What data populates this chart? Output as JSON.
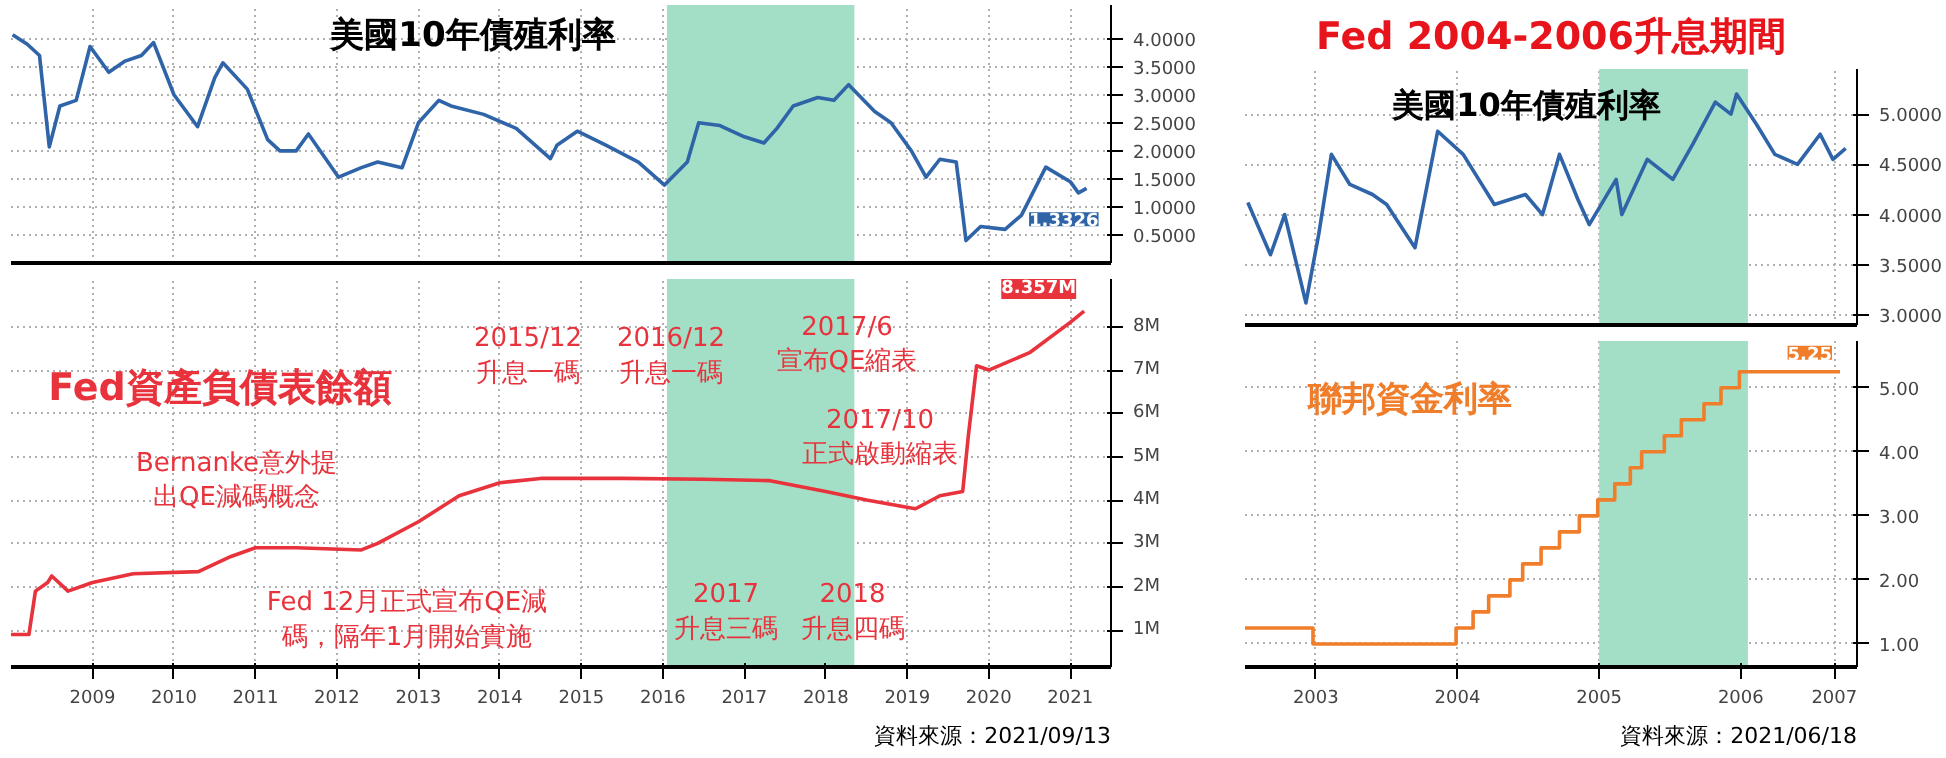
{
  "chart_data": [
    {
      "type": "line",
      "title": "美國10年債殖利率",
      "x": [
        2008.52,
        2008.7,
        2008.85,
        2008.97,
        2009.1,
        2009.3,
        2009.47,
        2009.7,
        2009.9,
        2010.1,
        2010.25,
        2010.5,
        2010.79,
        2011.0,
        2011.1,
        2011.4,
        2011.65,
        2011.8,
        2012.0,
        2012.15,
        2012.52,
        2012.8,
        2013.0,
        2013.3,
        2013.5,
        2013.75,
        2013.9,
        2014.3,
        2014.7,
        2015.12,
        2015.2,
        2015.45,
        2015.8,
        2016.2,
        2016.52,
        2016.8,
        2016.94,
        2017.2,
        2017.5,
        2017.74,
        2017.9,
        2018.1,
        2018.4,
        2018.6,
        2018.78,
        2019.1,
        2019.3,
        2019.55,
        2019.73,
        2019.9,
        2020.1,
        2020.17,
        2020.22,
        2020.4,
        2020.7,
        2020.9,
        2021.2,
        2021.5,
        2021.6,
        2021.7
      ],
      "series": [
        {
          "color": "#2f64a8",
          "values": [
            4.07,
            3.9,
            3.7,
            2.07,
            2.8,
            2.9,
            3.86,
            3.4,
            3.6,
            3.7,
            3.93,
            3.0,
            2.43,
            3.3,
            3.57,
            3.1,
            2.2,
            2.0,
            2.0,
            2.3,
            1.53,
            1.7,
            1.8,
            1.7,
            2.5,
            2.9,
            2.8,
            2.65,
            2.4,
            1.86,
            2.1,
            2.35,
            2.1,
            1.8,
            1.39,
            1.8,
            2.5,
            2.45,
            2.25,
            2.14,
            2.4,
            2.8,
            2.95,
            2.9,
            3.18,
            2.7,
            2.5,
            2.0,
            1.53,
            1.85,
            1.8,
            1.0,
            0.4,
            0.65,
            0.6,
            0.85,
            1.71,
            1.45,
            1.25,
            1.33
          ]
        }
      ],
      "xlim": [
        2008.5,
        2022.0
      ],
      "ylim": [
        0,
        4.6
      ],
      "xticks": [
        {
          "value": 2009.5,
          "label": "2009"
        },
        {
          "value": 2010.5,
          "label": "2010"
        },
        {
          "value": 2011.5,
          "label": "2011"
        },
        {
          "value": 2012.5,
          "label": "2012"
        },
        {
          "value": 2013.5,
          "label": "2013"
        },
        {
          "value": 2014.5,
          "label": "2014"
        },
        {
          "value": 2015.5,
          "label": "2015"
        },
        {
          "value": 2016.5,
          "label": "2016"
        },
        {
          "value": 2017.5,
          "label": "2017"
        },
        {
          "value": 2018.5,
          "label": "2018"
        },
        {
          "value": 2019.5,
          "label": "2019"
        },
        {
          "value": 2020.5,
          "label": "2020"
        },
        {
          "value": 2021.5,
          "label": "2021"
        }
      ],
      "yticks": [
        {
          "value": 0.5,
          "label": "0.5000"
        },
        {
          "value": 1,
          "label": "1.0000"
        },
        {
          "value": 1.5,
          "label": "1.5000"
        },
        {
          "value": 2,
          "label": "2.0000"
        },
        {
          "value": 2.5,
          "label": "2.5000"
        },
        {
          "value": 3,
          "label": "3.0000"
        },
        {
          "value": 3.5,
          "label": "3.5000"
        },
        {
          "value": 4,
          "label": "4.0000"
        }
      ],
      "bands": [
        {
          "axis": "x",
          "from": 2016.55,
          "to": 2018.85,
          "color": "#a3dfc6"
        }
      ],
      "annotations": [
        {
          "text": "1.3326",
          "x": 2021.7,
          "y": 1.3326
        }
      ],
      "grid": true,
      "tick_labels": "y"
    },
    {
      "type": "line",
      "title": "Fed資產負債表餘額",
      "x": [
        2008.5,
        2008.72,
        2008.8,
        2008.95,
        2009.0,
        2009.2,
        2009.5,
        2010.0,
        2010.8,
        2011.2,
        2011.5,
        2012.0,
        2012.8,
        2013.0,
        2013.5,
        2014.0,
        2014.5,
        2015.0,
        2016.0,
        2017.0,
        2017.8,
        2018.5,
        2019.0,
        2019.6,
        2019.9,
        2020.18,
        2020.25,
        2020.35,
        2020.5,
        2021.0,
        2021.5,
        2021.67
      ],
      "series": [
        {
          "color": "#e8323c",
          "values": [
            0.9,
            0.9,
            1.9,
            2.1,
            2.25,
            1.9,
            2.1,
            2.3,
            2.35,
            2.7,
            2.9,
            2.9,
            2.85,
            3.0,
            3.5,
            4.1,
            4.4,
            4.5,
            4.5,
            4.48,
            4.45,
            4.2,
            4.0,
            3.8,
            4.1,
            4.2,
            5.5,
            7.1,
            7.0,
            7.4,
            8.1,
            8.36
          ]
        }
      ],
      "xlim": [
        2008.5,
        2022.0
      ],
      "ylim": [
        0.15,
        9.1
      ],
      "xticks": [
        {
          "value": 2009.5,
          "label": "2009"
        },
        {
          "value": 2010.5,
          "label": "2010"
        },
        {
          "value": 2011.5,
          "label": "2011"
        },
        {
          "value": 2012.5,
          "label": "2012"
        },
        {
          "value": 2013.5,
          "label": "2013"
        },
        {
          "value": 2014.5,
          "label": "2014"
        },
        {
          "value": 2015.5,
          "label": "2015"
        },
        {
          "value": 2016.5,
          "label": "2016"
        },
        {
          "value": 2017.5,
          "label": "2017"
        },
        {
          "value": 2018.5,
          "label": "2018"
        },
        {
          "value": 2019.5,
          "label": "2019"
        },
        {
          "value": 2020.5,
          "label": "2020"
        },
        {
          "value": 2021.5,
          "label": "2021"
        }
      ],
      "yticks": [
        {
          "value": 1,
          "label": "1M"
        },
        {
          "value": 2,
          "label": "2M"
        },
        {
          "value": 3,
          "label": "3M"
        },
        {
          "value": 4,
          "label": "4M"
        },
        {
          "value": 5,
          "label": "5M"
        },
        {
          "value": 6,
          "label": "6M"
        },
        {
          "value": 7,
          "label": "7M"
        },
        {
          "value": 8,
          "label": "8M"
        }
      ],
      "bands": [
        {
          "axis": "x",
          "from": 2016.55,
          "to": 2018.85,
          "color": "#a3dfc6"
        }
      ],
      "annotations": [
        {
          "text": "8.357M",
          "x": 2021.67,
          "y": 8.36
        },
        "Bernanke意外提出QE減碼概念",
        "Fed 12月正式宣布QE減碼，隔年1月開始實施",
        "2015/12\n升息一碼",
        "2016/12\n升息一碼",
        "2017/6\n宣布QE縮表",
        "2017/10\n正式啟動縮表",
        "2017\n升息三碼",
        "2018\n升息四碼",
        "資料來源：2021/09/13"
      ],
      "grid": true
    },
    {
      "type": "line",
      "title": "Fed 2004-2006升息期間",
      "subtitle": "美國10年債殖利率",
      "x": [
        2003.02,
        2003.18,
        2003.28,
        2003.43,
        2003.52,
        2003.61,
        2003.74,
        2003.9,
        2004.0,
        2004.2,
        2004.36,
        2004.54,
        2004.76,
        2004.98,
        2005.1,
        2005.22,
        2005.35,
        2005.43,
        2005.62,
        2005.66,
        2005.84,
        2006.02,
        2006.16,
        2006.32,
        2006.43,
        2006.47,
        2006.61,
        2006.74,
        2006.9,
        2007.06,
        2007.15,
        2007.24
      ],
      "series": [
        {
          "color": "#2f64a8",
          "values": [
            4.12,
            3.6,
            4.0,
            3.12,
            3.8,
            4.6,
            4.3,
            4.2,
            4.1,
            3.67,
            4.83,
            4.6,
            4.1,
            4.2,
            4.0,
            4.6,
            4.15,
            3.9,
            4.35,
            4.0,
            4.55,
            4.35,
            4.7,
            5.12,
            5.0,
            5.2,
            4.9,
            4.6,
            4.5,
            4.8,
            4.55,
            4.66
          ]
        }
      ],
      "xlim": [
        2003.0,
        2007.32
      ],
      "ylim": [
        2.9,
        5.45
      ],
      "xticks": [
        {
          "value": 2003.5,
          "label": "2003"
        },
        {
          "value": 2004.5,
          "label": "2004"
        },
        {
          "value": 2005.5,
          "label": "2005"
        },
        {
          "value": 2006.5,
          "label": "2006"
        },
        {
          "value": 2007.16,
          "label": "2007"
        }
      ],
      "yticks": [
        {
          "value": 3,
          "label": "3.0000"
        },
        {
          "value": 3.5,
          "label": "3.5000"
        },
        {
          "value": 4,
          "label": "4.0000"
        },
        {
          "value": 4.5,
          "label": "4.5000"
        },
        {
          "value": 5,
          "label": "5.0000"
        }
      ],
      "bands": [
        {
          "axis": "x",
          "from": 2005.5,
          "to": 2006.55,
          "color": "#a3dfc6"
        }
      ],
      "grid": true,
      "tick_labels": "y"
    },
    {
      "type": "step",
      "title": "聯邦資金利率",
      "x": [
        2003.0,
        2003.48,
        2004.49,
        2004.61,
        2004.72,
        2004.87,
        2004.96,
        2005.09,
        2005.22,
        2005.36,
        2005.49,
        2005.61,
        2005.72,
        2005.8,
        2005.96,
        2006.08,
        2006.24,
        2006.36,
        2006.49,
        2007.2
      ],
      "series": [
        {
          "color": "#f07d2a",
          "values": [
            1.25,
            1.0,
            1.25,
            1.5,
            1.75,
            2.0,
            2.25,
            2.5,
            2.75,
            3.0,
            3.25,
            3.5,
            3.75,
            4.0,
            4.25,
            4.5,
            4.75,
            5.0,
            5.25,
            5.25
          ]
        }
      ],
      "xlim": [
        2003.0,
        2007.32
      ],
      "ylim": [
        0.64,
        5.73
      ],
      "xticks": [
        {
          "value": 2003.5,
          "label": "2003"
        },
        {
          "value": 2004.5,
          "label": "2004"
        },
        {
          "value": 2005.5,
          "label": "2005"
        },
        {
          "value": 2006.5,
          "label": "2006"
        },
        {
          "value": 2007.16,
          "label": "2007"
        }
      ],
      "yticks": [
        {
          "value": 1,
          "label": "1.00"
        },
        {
          "value": 2,
          "label": "2.00"
        },
        {
          "value": 3,
          "label": "3.00"
        },
        {
          "value": 4,
          "label": "4.00"
        },
        {
          "value": 5,
          "label": "5.00"
        }
      ],
      "bands": [
        {
          "axis": "x",
          "from": 2005.5,
          "to": 2006.55,
          "color": "#a3dfc6"
        }
      ],
      "annotations": [
        {
          "text": "5.25",
          "x": 2007.2,
          "y": 5.25
        },
        "資料來源：2021/06/18"
      ],
      "grid": true
    }
  ]
}
